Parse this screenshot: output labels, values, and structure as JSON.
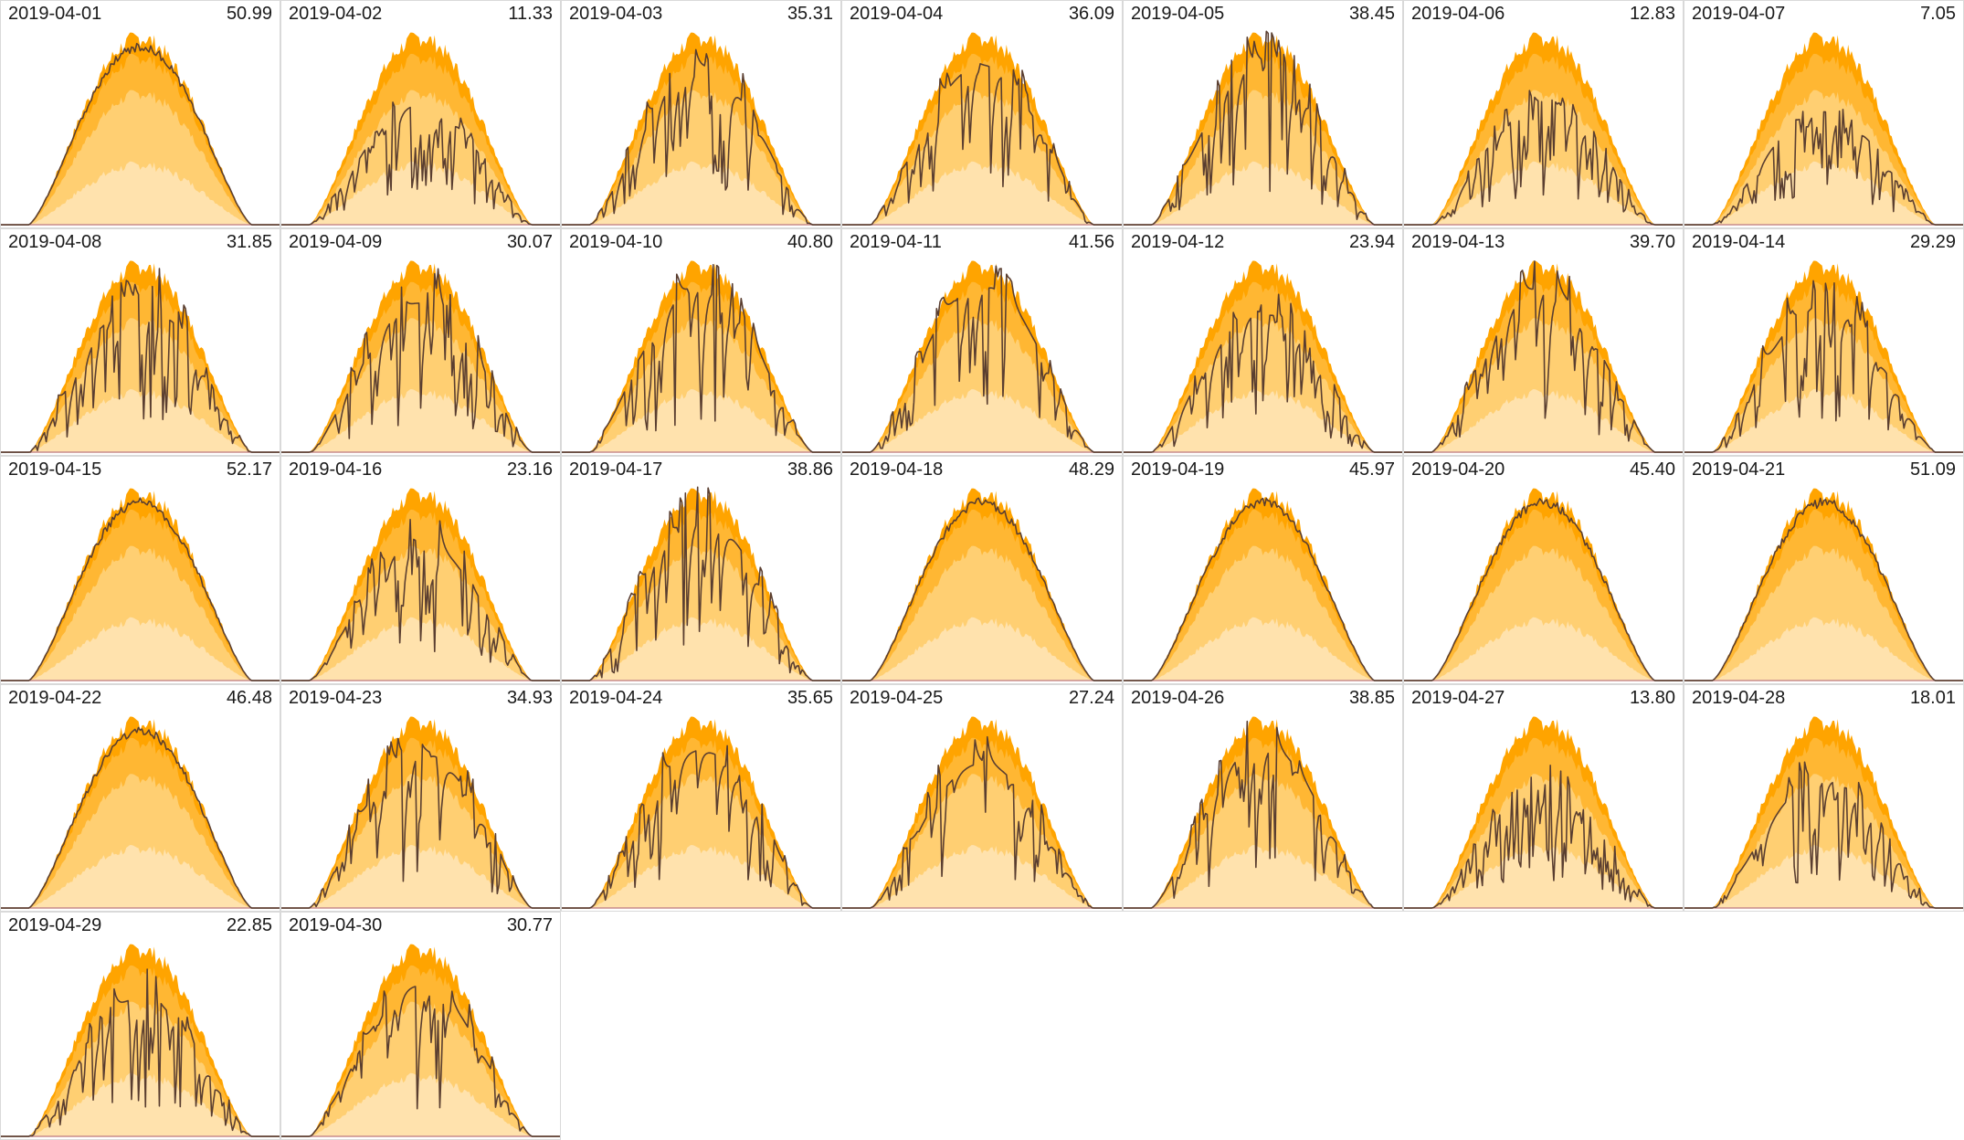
{
  "colors": {
    "band_max": "#ffa400",
    "band_p90": "#ffb733",
    "band_p75": "#ffcf72",
    "band_p25": "#ffe2ad",
    "actual_line": "#5a3e30",
    "baseline": "#c88c8c",
    "panel_border": "#d9d9d9",
    "text": "#1a1a1a"
  },
  "chart_data": {
    "type": "area",
    "layout": "small-multiples-7-columns",
    "days": [
      {
        "date": "2019-04-01",
        "total": "50.99",
        "value": 50.99
      },
      {
        "date": "2019-04-02",
        "total": "11.33",
        "value": 11.33
      },
      {
        "date": "2019-04-03",
        "total": "35.31",
        "value": 35.31
      },
      {
        "date": "2019-04-04",
        "total": "36.09",
        "value": 36.09
      },
      {
        "date": "2019-04-05",
        "total": "38.45",
        "value": 38.45
      },
      {
        "date": "2019-04-06",
        "total": "12.83",
        "value": 12.83
      },
      {
        "date": "2019-04-07",
        "total": "7.05",
        "value": 7.05
      },
      {
        "date": "2019-04-08",
        "total": "31.85",
        "value": 31.85
      },
      {
        "date": "2019-04-09",
        "total": "30.07",
        "value": 30.07
      },
      {
        "date": "2019-04-10",
        "total": "40.80",
        "value": 40.8
      },
      {
        "date": "2019-04-11",
        "total": "41.56",
        "value": 41.56
      },
      {
        "date": "2019-04-12",
        "total": "23.94",
        "value": 23.94
      },
      {
        "date": "2019-04-13",
        "total": "39.70",
        "value": 39.7
      },
      {
        "date": "2019-04-14",
        "total": "29.29",
        "value": 29.29
      },
      {
        "date": "2019-04-15",
        "total": "52.17",
        "value": 52.17
      },
      {
        "date": "2019-04-16",
        "total": "23.16",
        "value": 23.16
      },
      {
        "date": "2019-04-17",
        "total": "38.86",
        "value": 38.86
      },
      {
        "date": "2019-04-18",
        "total": "48.29",
        "value": 48.29
      },
      {
        "date": "2019-04-19",
        "total": "45.97",
        "value": 45.97
      },
      {
        "date": "2019-04-20",
        "total": "45.40",
        "value": 45.4
      },
      {
        "date": "2019-04-21",
        "total": "51.09",
        "value": 51.09
      },
      {
        "date": "2019-04-22",
        "total": "46.48",
        "value": 46.48
      },
      {
        "date": "2019-04-23",
        "total": "34.93",
        "value": 34.93
      },
      {
        "date": "2019-04-24",
        "total": "35.65",
        "value": 35.65
      },
      {
        "date": "2019-04-25",
        "total": "27.24",
        "value": 27.24
      },
      {
        "date": "2019-04-26",
        "total": "38.85",
        "value": 38.85
      },
      {
        "date": "2019-04-27",
        "total": "13.80",
        "value": 13.8
      },
      {
        "date": "2019-04-28",
        "total": "18.01",
        "value": 18.01
      },
      {
        "date": "2019-04-29",
        "total": "22.85",
        "value": 22.85
      },
      {
        "date": "2019-04-30",
        "total": "30.77",
        "value": 30.77
      }
    ]
  }
}
